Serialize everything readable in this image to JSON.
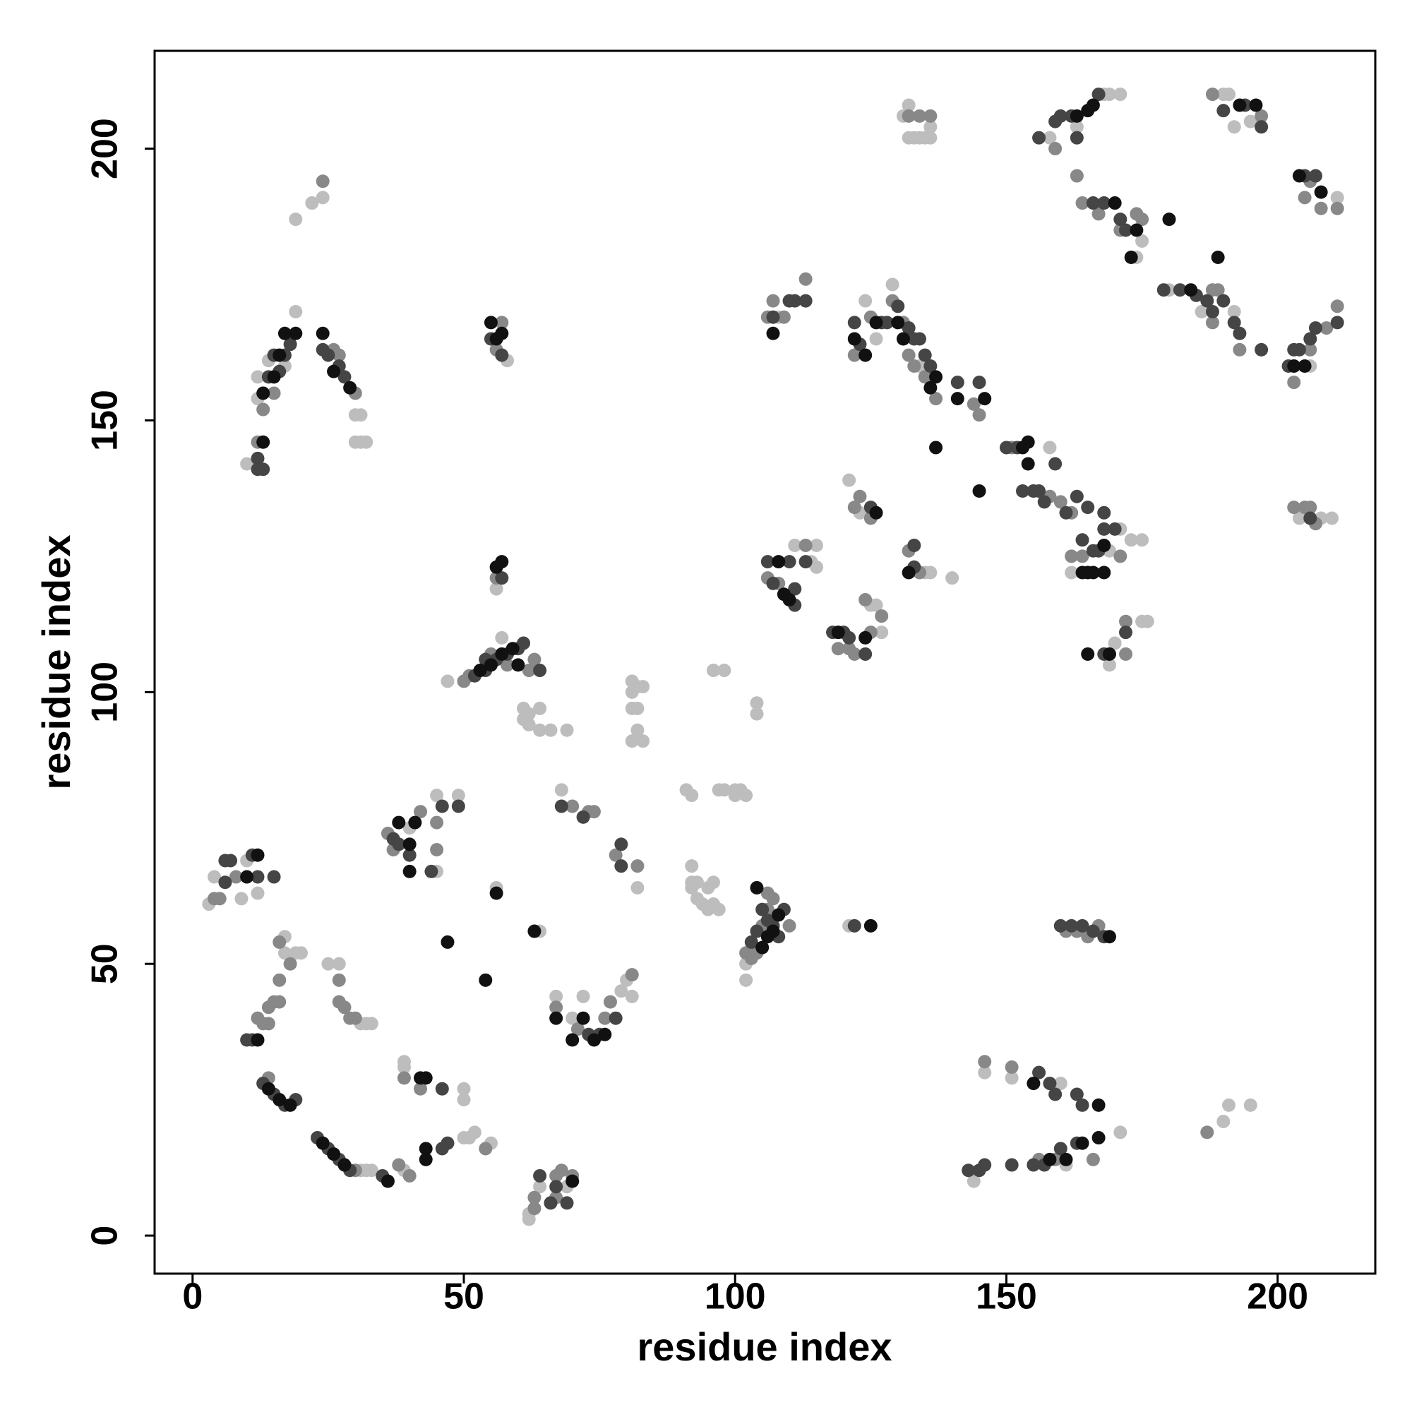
{
  "chart_data": {
    "type": "scatter",
    "x_label": "residue index",
    "y_label": "residue index",
    "xlim": [
      -7,
      218
    ],
    "ylim": [
      -7,
      218
    ],
    "xticks": [
      0,
      50,
      100,
      150,
      200
    ],
    "yticks": [
      0,
      50,
      100,
      150,
      200
    ],
    "series": [
      {
        "color": "#bdbdbd",
        "x": [
          31,
          32,
          33,
          39,
          50,
          51,
          52,
          55,
          50,
          50,
          39,
          39,
          17,
          17,
          19,
          20,
          25,
          27,
          31,
          32,
          33,
          62,
          62,
          64,
          69,
          67,
          70,
          72,
          79,
          80,
          81,
          3,
          4,
          9,
          10,
          12,
          40,
          45,
          49,
          45,
          56,
          64,
          68,
          82,
          47,
          57,
          56,
          61,
          61,
          62,
          62,
          64,
          64,
          66,
          69,
          81,
          81,
          82,
          82,
          81,
          82,
          81,
          83,
          83,
          91,
          92,
          92,
          92,
          92,
          93,
          93,
          94,
          95,
          95,
          96,
          96,
          97,
          97,
          98,
          100,
          100,
          101,
          102,
          96,
          98,
          104,
          104,
          102,
          102,
          121,
          58,
          10,
          12,
          12,
          14,
          17,
          30,
          31,
          30,
          31,
          32,
          19,
          22,
          24,
          19,
          111,
          114,
          115,
          115,
          125,
          126,
          127,
          121,
          123,
          135,
          136,
          140,
          108,
          124,
          129,
          126,
          134,
          158,
          162,
          169,
          171,
          173,
          175,
          169,
          170,
          175,
          176,
          131,
          132,
          132,
          133,
          134,
          135,
          136,
          136,
          158,
          168,
          169,
          171,
          163,
          174,
          175,
          190,
          191,
          192,
          195,
          180,
          186,
          192,
          211,
          206,
          208,
          210,
          204,
          144,
          146,
          151,
          160,
          161,
          171,
          190,
          191,
          195
        ],
        "values": [
          12,
          12,
          12,
          12,
          18,
          18,
          19,
          17,
          27,
          25,
          31,
          32,
          55,
          52,
          52,
          52,
          50,
          50,
          39,
          39,
          39,
          3,
          4,
          9,
          9,
          44,
          40,
          44,
          45,
          47,
          44,
          61,
          66,
          62,
          69,
          63,
          75,
          81,
          81,
          67,
          64,
          56,
          82,
          64,
          102,
          110,
          119,
          97,
          95,
          96,
          94,
          97,
          93,
          93,
          93,
          100,
          102,
          101,
          97,
          97,
          93,
          91,
          91,
          101,
          82,
          81,
          68,
          65,
          64,
          62,
          65,
          61,
          64,
          60,
          65,
          61,
          82,
          60,
          82,
          82,
          81,
          82,
          81,
          104,
          104,
          98,
          96,
          47,
          50,
          57,
          161,
          142,
          154,
          158,
          161,
          160,
          151,
          151,
          146,
          146,
          146,
          187,
          190,
          191,
          170,
          127,
          124,
          127,
          123,
          116,
          116,
          111,
          139,
          133,
          122,
          122,
          121,
          169,
          172,
          175,
          165,
          160,
          145,
          122,
          126,
          130,
          128,
          128,
          105,
          109,
          113,
          113,
          206,
          202,
          208,
          202,
          202,
          202,
          202,
          204,
          202,
          210,
          210,
          210,
          204,
          180,
          183,
          210,
          210,
          204,
          205,
          174,
          170,
          170,
          191,
          160,
          132,
          132,
          132,
          10,
          30,
          29,
          28,
          13,
          19,
          21,
          24,
          24
        ]
      },
      {
        "color": "#888888",
        "x": [
          12,
          13,
          14,
          30,
          38,
          40,
          42,
          39,
          14,
          14,
          15,
          16,
          16,
          16,
          18,
          27,
          27,
          28,
          29,
          30,
          54,
          63,
          63,
          67,
          67,
          68,
          70,
          67,
          71,
          76,
          77,
          81,
          4,
          5,
          8,
          36,
          37,
          42,
          45,
          45,
          78,
          82,
          70,
          73,
          74,
          50,
          51,
          55,
          58,
          62,
          63,
          56,
          102,
          103,
          104,
          105,
          106,
          110,
          106,
          107,
          56,
          57,
          12,
          13,
          15,
          26,
          27,
          30,
          24,
          106,
          108,
          113,
          119,
          121,
          122,
          125,
          124,
          127,
          122,
          123,
          125,
          132,
          134,
          106,
          109,
          107,
          113,
          122,
          125,
          129,
          131,
          132,
          133,
          135,
          137,
          144,
          145,
          151,
          155,
          158,
          160,
          162,
          162,
          164,
          171,
          172,
          172,
          161,
          163,
          165,
          167,
          132,
          134,
          136,
          159,
          163,
          164,
          167,
          171,
          174,
          175,
          188,
          197,
          188,
          188,
          189,
          193,
          206,
          205,
          208,
          211,
          203,
          206,
          209,
          211,
          203,
          205,
          206,
          207,
          146,
          151,
          156,
          159,
          166,
          187
        ],
        "values": [
          40,
          39,
          29,
          12,
          13,
          11,
          27,
          29,
          39,
          42,
          43,
          47,
          43,
          54,
          50,
          47,
          43,
          42,
          40,
          40,
          16,
          5,
          7,
          7,
          11,
          12,
          11,
          42,
          38,
          40,
          43,
          48,
          62,
          62,
          66,
          74,
          71,
          78,
          71,
          76,
          70,
          68,
          79,
          78,
          78,
          102,
          103,
          107,
          105,
          104,
          106,
          121,
          52,
          51,
          52,
          57,
          60,
          57,
          63,
          62,
          163,
          168,
          146,
          152,
          155,
          163,
          162,
          155,
          194,
          121,
          120,
          127,
          108,
          108,
          107,
          111,
          117,
          114,
          134,
          136,
          132,
          126,
          122,
          169,
          169,
          172,
          176,
          162,
          169,
          172,
          168,
          162,
          160,
          158,
          154,
          153,
          151,
          145,
          137,
          136,
          135,
          133,
          125,
          125,
          125,
          107,
          113,
          56,
          56,
          55,
          57,
          206,
          206,
          206,
          200,
          195,
          190,
          188,
          185,
          188,
          187,
          210,
          206,
          174,
          168,
          174,
          163,
          194,
          191,
          189,
          189,
          157,
          163,
          167,
          171,
          134,
          134,
          134,
          131,
          32,
          31,
          14,
          14,
          14,
          19
        ]
      },
      {
        "color": "#454545",
        "x": [
          10,
          11,
          13,
          15,
          17,
          19,
          23,
          25,
          27,
          29,
          35,
          46,
          47,
          46,
          64,
          66,
          67,
          69,
          73,
          75,
          78,
          6,
          6,
          7,
          11,
          12,
          15,
          37,
          38,
          40,
          44,
          46,
          49,
          72,
          68,
          79,
          79,
          52,
          54,
          54,
          56,
          58,
          60,
          61,
          64,
          57,
          103,
          104,
          105,
          106,
          107,
          108,
          109,
          122,
          55,
          57,
          12,
          12,
          13,
          14,
          15,
          16,
          17,
          18,
          24,
          25,
          27,
          28,
          106,
          107,
          110,
          111,
          111,
          113,
          118,
          120,
          121,
          124,
          125,
          133,
          133,
          107,
          110,
          111,
          113,
          122,
          123,
          127,
          128,
          130,
          132,
          133,
          134,
          135,
          136,
          141,
          145,
          150,
          152,
          153,
          155,
          156,
          157,
          159,
          161,
          163,
          164,
          165,
          166,
          167,
          168,
          168,
          170,
          172,
          168,
          160,
          162,
          164,
          166,
          168,
          156,
          159,
          160,
          162,
          163,
          167,
          166,
          168,
          171,
          172,
          190,
          194,
          197,
          179,
          182,
          185,
          187,
          188,
          190,
          192,
          193,
          197,
          205,
          207,
          202,
          203,
          204,
          206,
          207,
          211,
          206,
          143,
          145,
          151,
          155,
          156,
          157,
          158,
          159,
          160,
          163,
          163,
          164,
          146
        ],
        "values": [
          36,
          36,
          28,
          26,
          24,
          25,
          18,
          16,
          14,
          12,
          11,
          16,
          17,
          27,
          11,
          6,
          9,
          6,
          37,
          37,
          40,
          65,
          69,
          69,
          70,
          66,
          66,
          73,
          72,
          70,
          67,
          79,
          79,
          77,
          79,
          72,
          68,
          103,
          104,
          106,
          106,
          107,
          108,
          109,
          104,
          121,
          54,
          56,
          60,
          58,
          57,
          55,
          60,
          57,
          165,
          162,
          141,
          143,
          141,
          158,
          162,
          159,
          162,
          164,
          163,
          162,
          160,
          158,
          124,
          120,
          124,
          119,
          116,
          124,
          111,
          111,
          110,
          107,
          134,
          127,
          123,
          169,
          172,
          172,
          172,
          168,
          164,
          168,
          168,
          171,
          167,
          165,
          165,
          162,
          160,
          157,
          157,
          145,
          145,
          137,
          137,
          137,
          135,
          142,
          133,
          136,
          128,
          134,
          126,
          126,
          133,
          130,
          130,
          111,
          107,
          57,
          57,
          57,
          56,
          55,
          202,
          205,
          206,
          206,
          202,
          210,
          190,
          190,
          187,
          185,
          207,
          208,
          204,
          174,
          174,
          173,
          172,
          170,
          172,
          168,
          166,
          163,
          195,
          195,
          160,
          163,
          163,
          165,
          167,
          168,
          132,
          12,
          12,
          13,
          13,
          30,
          13,
          28,
          26,
          16,
          17,
          26,
          24,
          13
        ]
      },
      {
        "color": "#111111",
        "x": [
          12,
          14,
          16,
          18,
          24,
          26,
          28,
          36,
          43,
          43,
          42,
          43,
          47,
          54,
          56,
          63,
          70,
          67,
          70,
          72,
          74,
          76,
          12,
          10,
          38,
          40,
          40,
          41,
          53,
          55,
          57,
          59,
          60,
          56,
          57,
          106,
          107,
          105,
          108,
          104,
          125,
          55,
          56,
          57,
          13,
          13,
          15,
          16,
          17,
          19,
          24,
          26,
          29,
          108,
          109,
          110,
          107,
          119,
          124,
          126,
          132,
          122,
          124,
          126,
          130,
          131,
          136,
          137,
          137,
          141,
          145,
          146,
          153,
          154,
          154,
          165,
          166,
          168,
          168,
          165,
          169,
          169,
          164,
          163,
          165,
          166,
          170,
          173,
          174,
          180,
          193,
          196,
          184,
          189,
          204,
          208,
          203,
          205,
          155,
          158,
          161,
          164,
          167,
          167
        ],
        "values": [
          36,
          27,
          25,
          24,
          17,
          15,
          13,
          10,
          14,
          16,
          29,
          29,
          54,
          47,
          63,
          56,
          10,
          40,
          36,
          40,
          36,
          37,
          70,
          66,
          76,
          72,
          67,
          76,
          104,
          105,
          107,
          108,
          105,
          123,
          124,
          55,
          56,
          53,
          59,
          64,
          57,
          168,
          165,
          166,
          146,
          155,
          158,
          162,
          166,
          166,
          166,
          159,
          156,
          124,
          118,
          117,
          166,
          111,
          110,
          133,
          122,
          165,
          162,
          168,
          168,
          165,
          156,
          158,
          145,
          154,
          137,
          154,
          145,
          146,
          142,
          122,
          122,
          127,
          122,
          107,
          107,
          55,
          122,
          206,
          207,
          208,
          190,
          180,
          185,
          187,
          208,
          208,
          174,
          180,
          195,
          192,
          160,
          160,
          28,
          14,
          14,
          17,
          24,
          18
        ]
      }
    ]
  }
}
